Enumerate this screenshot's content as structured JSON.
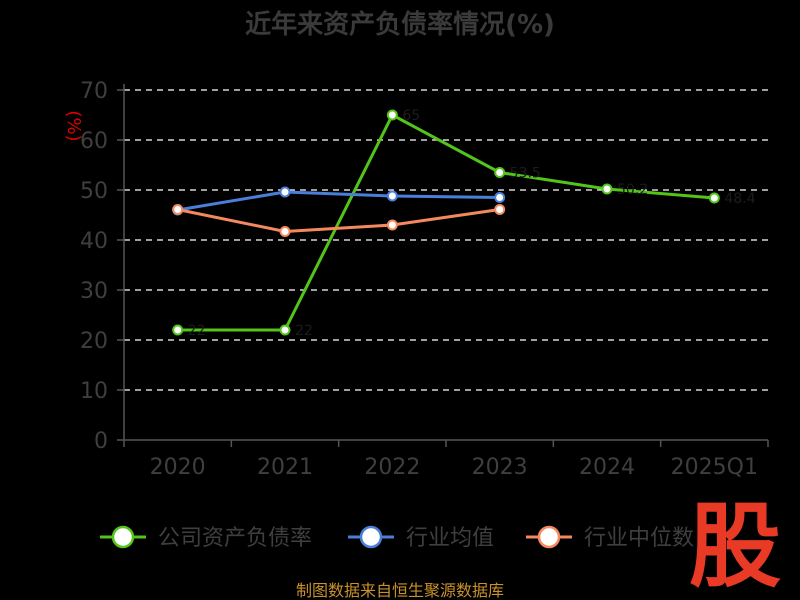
{
  "chart_data": {
    "type": "line",
    "title": "近年来资产负债率情况(%)",
    "ylabel": "(%)",
    "categories": [
      "2020",
      "2021",
      "2022",
      "2023",
      "2024",
      "2025Q1"
    ],
    "y_ticks": [
      "0",
      "10",
      "20",
      "30",
      "40",
      "50",
      "60",
      "70"
    ],
    "ylim": [
      0,
      70
    ],
    "grid": true,
    "legend_position": "bottom",
    "series": [
      {
        "name": "公司资产负债率",
        "color": "#52c41a",
        "values": [
          22.0,
          22.0,
          65.0,
          53.5,
          50.2,
          48.4
        ]
      },
      {
        "name": "行业均值",
        "color": "#4a7fd9",
        "values": [
          46.0,
          49.6,
          48.8,
          48.5,
          null,
          null
        ]
      },
      {
        "name": "行业中位数",
        "color": "#f4895f",
        "values": [
          46.1,
          41.7,
          43.0,
          46.1,
          null,
          null
        ]
      }
    ]
  },
  "footer": {
    "source": "制图数据来自恒生聚源数据库"
  },
  "badge": {
    "text": "股"
  }
}
